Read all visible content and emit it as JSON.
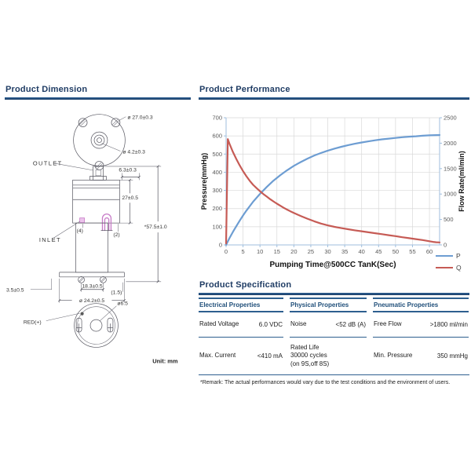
{
  "sections": {
    "dimension": {
      "title": "Product Dimension"
    },
    "performance": {
      "title": "Product Performance"
    },
    "specification": {
      "title": "Product Specification"
    }
  },
  "dimension_drawing": {
    "unit_note": "Unit: mm",
    "labels": {
      "dia_mount_circle": "ø 27.0±0.3",
      "dia_shaft": "ø 4.2±0.3",
      "outlet": "OUTLET",
      "dim_outlet": "6.3±0.3",
      "dim_body_height": "27±0.5",
      "dim_total_height": "*57.5±1.0",
      "inlet": "INLET",
      "paren_4": "(4)",
      "paren_2": "(2)",
      "dim_foot": "3.5±0.5",
      "dim_screw_span": "18.3±0.5",
      "paren_1_5": "(1.5)",
      "dia_flange": "ø 24.2±0.5",
      "dia_center_hole": "ø6.5",
      "red_terminal": "RED(+)"
    }
  },
  "chart_data": {
    "type": "line",
    "title": "",
    "xlabel": "Pumping Time@500CC TanK(Sec)",
    "ylabel_left": "Pressure(mmHg)",
    "ylabel_right": "Flow Rate(ml/min)",
    "xlim": [
      0,
      63
    ],
    "x_ticks": [
      0,
      5,
      10,
      15,
      20,
      25,
      30,
      35,
      40,
      45,
      50,
      55,
      60
    ],
    "ylim_left": [
      0,
      700
    ],
    "left_ticks": [
      0,
      100,
      200,
      300,
      400,
      500,
      600,
      700
    ],
    "ylim_right": [
      0,
      2500
    ],
    "right_ticks": [
      0,
      500,
      1000,
      1500,
      2000,
      2500
    ],
    "grid": true,
    "legend_position": "bottom-right",
    "series": [
      {
        "name": "P",
        "axis": "left",
        "unit": "mmHg",
        "color": "#6D9DD2",
        "points": [
          [
            0,
            0
          ],
          [
            1,
            37
          ],
          [
            2,
            71
          ],
          [
            3,
            103
          ],
          [
            4,
            133
          ],
          [
            5,
            162
          ],
          [
            6,
            189
          ],
          [
            8,
            238
          ],
          [
            10,
            281
          ],
          [
            12,
            319
          ],
          [
            14,
            354
          ],
          [
            16,
            384
          ],
          [
            18,
            411
          ],
          [
            20,
            435
          ],
          [
            22,
            456
          ],
          [
            24,
            475
          ],
          [
            26,
            492
          ],
          [
            28,
            506
          ],
          [
            30,
            519
          ],
          [
            32,
            530
          ],
          [
            34,
            540
          ],
          [
            36,
            549
          ],
          [
            38,
            557
          ],
          [
            40,
            564
          ],
          [
            42,
            570
          ],
          [
            44,
            576
          ],
          [
            46,
            581
          ],
          [
            48,
            585
          ],
          [
            50,
            589
          ],
          [
            52,
            593
          ],
          [
            54,
            596
          ],
          [
            56,
            598
          ],
          [
            58,
            601
          ],
          [
            60,
            603
          ],
          [
            63,
            605
          ]
        ]
      },
      {
        "name": "Q",
        "axis": "right",
        "unit": "ml/min",
        "color": "#C65B55",
        "points": [
          [
            0,
            30
          ],
          [
            0.5,
            2080
          ],
          [
            1,
            1990
          ],
          [
            2,
            1830
          ],
          [
            3,
            1690
          ],
          [
            4,
            1565
          ],
          [
            5,
            1450
          ],
          [
            6,
            1350
          ],
          [
            7,
            1260
          ],
          [
            8,
            1180
          ],
          [
            9,
            1115
          ],
          [
            10,
            1055
          ],
          [
            11,
            1000
          ],
          [
            12,
            950
          ],
          [
            13,
            900
          ],
          [
            14,
            855
          ],
          [
            15,
            810
          ],
          [
            16,
            770
          ],
          [
            17,
            730
          ],
          [
            18,
            695
          ],
          [
            19,
            660
          ],
          [
            20,
            630
          ],
          [
            22,
            570
          ],
          [
            24,
            515
          ],
          [
            26,
            465
          ],
          [
            28,
            420
          ],
          [
            30,
            385
          ],
          [
            32,
            355
          ],
          [
            34,
            330
          ],
          [
            36,
            308
          ],
          [
            38,
            287
          ],
          [
            40,
            268
          ],
          [
            42,
            249
          ],
          [
            44,
            230
          ],
          [
            46,
            211
          ],
          [
            48,
            192
          ],
          [
            50,
            173
          ],
          [
            52,
            152
          ],
          [
            54,
            133
          ],
          [
            56,
            114
          ],
          [
            58,
            95
          ],
          [
            60,
            72
          ],
          [
            61,
            60
          ],
          [
            62,
            53
          ],
          [
            63,
            50
          ]
        ]
      }
    ]
  },
  "spec_table": {
    "groups": [
      {
        "header": "Electrical Properties",
        "rows": [
          {
            "label": "Rated Voltage",
            "value": "6.0 VDC"
          },
          {
            "label": "Max. Current",
            "value": "<410 mA"
          }
        ]
      },
      {
        "header": "Physical Properties",
        "rows": [
          {
            "label": "Noise",
            "value": "<52 dB (A)"
          },
          {
            "label": "Rated Life\n30000 cycles\n(on 9S,off 8S)",
            "value": ""
          }
        ]
      },
      {
        "header": "Pneumatic Properties",
        "rows": [
          {
            "label": "Free Flow",
            "value": ">1800 ml/min"
          },
          {
            "label": "Min. Pressure",
            "value": "350 mmHg"
          }
        ]
      }
    ],
    "remark": "*Remark: The actual performances would vary due to the test conditions and the environment of users."
  },
  "colors": {
    "heading_text": "#1F3C64",
    "heading_rule": "#20456E",
    "table_border": "#2E5F8F",
    "table_header_text": "#1F4E79",
    "curve_p": "#6D9DD2",
    "curve_q": "#C65B55",
    "axis_line": "#9FBEDE",
    "gridline": "#D9D9D9",
    "drawing_pink": "#C77BC7"
  }
}
